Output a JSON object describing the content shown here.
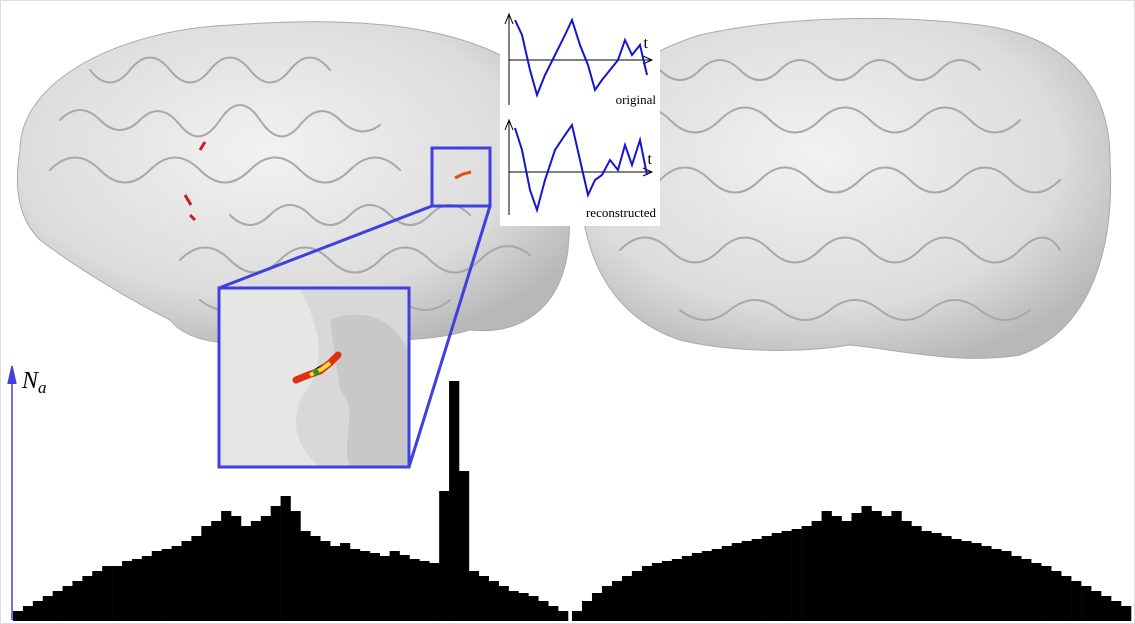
{
  "chart_data": {
    "type": "bar",
    "y_label": {
      "main": "N",
      "sub": "a"
    },
    "color": "#000000",
    "ylim": [
      0,
      250
    ],
    "values": [
      10,
      15,
      20,
      25,
      30,
      35,
      40,
      45,
      50,
      55,
      55,
      60,
      62,
      65,
      70,
      72,
      75,
      80,
      85,
      95,
      100,
      110,
      105,
      95,
      100,
      105,
      115,
      125,
      110,
      90,
      85,
      80,
      75,
      78,
      72,
      70,
      68,
      65,
      70,
      66,
      62,
      60,
      58,
      130,
      240,
      150,
      50,
      45,
      40,
      35,
      30,
      28,
      25,
      20,
      15,
      10,
      null,
      10,
      20,
      28,
      35,
      40,
      45,
      50,
      55,
      58,
      60,
      62,
      65,
      68,
      70,
      72,
      75,
      78,
      80,
      82,
      85,
      88,
      90,
      92,
      95,
      100,
      110,
      105,
      100,
      108,
      115,
      110,
      105,
      110,
      100,
      95,
      90,
      88,
      85,
      82,
      80,
      78,
      75,
      72,
      70,
      65,
      62,
      58,
      55,
      50,
      45,
      40,
      35,
      30,
      25,
      20,
      15
    ]
  },
  "signal_panel": {
    "axis_label_top": "t",
    "caption_top": "original",
    "axis_label_bottom": "t",
    "caption_bottom": "reconstructed"
  }
}
